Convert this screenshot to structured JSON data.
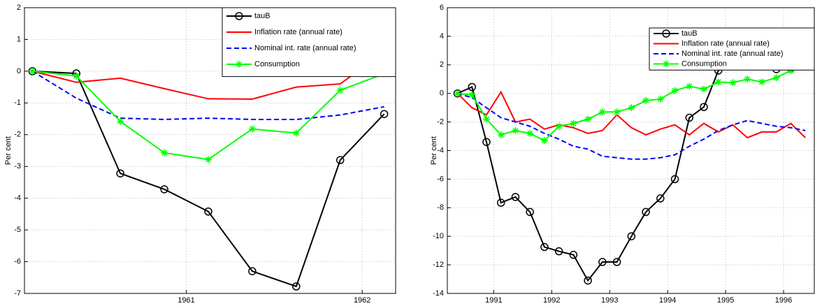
{
  "chart_data": [
    {
      "type": "line",
      "ylabel": "Per cent",
      "legend": "northeast",
      "grid": true,
      "x": [
        1960.125,
        1960.375,
        1960.625,
        1960.875,
        1961.125,
        1961.375,
        1961.625,
        1961.875,
        1962.125
      ],
      "xlim": [
        1960.08,
        1962.19
      ],
      "xticks": [
        1961,
        1962
      ],
      "ylim": [
        -7,
        2
      ],
      "yticks": [
        -7,
        -6,
        -5,
        -4,
        -3,
        -2,
        -1,
        0,
        1,
        2
      ],
      "series": [
        {
          "name": "tauB",
          "color": "#000000",
          "marker": "circle",
          "style": "solid",
          "values": [
            0,
            -0.07,
            -3.22,
            -3.72,
            -4.42,
            -6.3,
            -6.78,
            -2.8,
            -1.35
          ]
        },
        {
          "name": "Inflation rate (annual rate)",
          "color": "#ff0000",
          "style": "solid",
          "values": [
            0,
            -0.35,
            -0.22,
            -0.55,
            -0.87,
            -0.88,
            -0.5,
            -0.4,
            0.6
          ]
        },
        {
          "name": "Nominal int. rate (annual rate)",
          "color": "#0000ff",
          "style": "dashed",
          "values": [
            0,
            -0.85,
            -1.48,
            -1.52,
            -1.48,
            -1.52,
            -1.52,
            -1.38,
            -1.12
          ]
        },
        {
          "name": "Consumption",
          "color": "#00ff00",
          "marker": "star",
          "style": "solid",
          "values": [
            0,
            -0.15,
            -1.58,
            -2.57,
            -2.78,
            -1.82,
            -1.95,
            -0.6,
            -0.08
          ]
        }
      ]
    },
    {
      "type": "line",
      "ylabel": "Per cent",
      "legend": "northeast",
      "grid": true,
      "x": [
        1990.375,
        1990.625,
        1990.875,
        1991.125,
        1991.375,
        1991.625,
        1991.875,
        1992.125,
        1992.375,
        1992.625,
        1992.875,
        1993.125,
        1993.375,
        1993.625,
        1993.875,
        1994.125,
        1994.375,
        1994.625,
        1994.875,
        1995.125,
        1995.375,
        1995.625,
        1995.875,
        1996.125,
        1996.375
      ],
      "xlim": [
        1990.2,
        1996.53
      ],
      "xticks": [
        1991,
        1992,
        1993,
        1994,
        1995,
        1996
      ],
      "ylim": [
        -14,
        6
      ],
      "yticks": [
        -14,
        -12,
        -10,
        -8,
        -6,
        -4,
        -2,
        0,
        2,
        4,
        6
      ],
      "series": [
        {
          "name": "tauB",
          "color": "#000000",
          "marker": "circle",
          "style": "solid",
          "values": [
            0,
            0.45,
            -3.4,
            -7.65,
            -7.25,
            -8.3,
            -10.75,
            -11.05,
            -11.3,
            -13.1,
            -11.8,
            -11.8,
            -10,
            -8.3,
            -7.35,
            -6,
            -1.7,
            -0.95,
            1.6,
            2.05,
            1.9,
            2.05,
            1.7,
            1.75,
            2.9
          ]
        },
        {
          "name": "Inflation rate (annual rate)",
          "color": "#ff0000",
          "style": "solid",
          "values": [
            0,
            -1.0,
            -1.5,
            0.1,
            -2.0,
            -1.8,
            -2.5,
            -2.2,
            -2.4,
            -2.8,
            -2.6,
            -1.5,
            -2.4,
            -2.9,
            -2.5,
            -2.2,
            -2.9,
            -2.1,
            -2.7,
            -2.2,
            -3.1,
            -2.7,
            -2.7,
            -2.1,
            -3.1
          ]
        },
        {
          "name": "Nominal int. rate (annual rate)",
          "color": "#0000ff",
          "style": "dashed",
          "values": [
            0,
            -0.3,
            -1.0,
            -1.7,
            -2.0,
            -2.3,
            -2.8,
            -3.2,
            -3.7,
            -3.9,
            -4.4,
            -4.5,
            -4.6,
            -4.6,
            -4.5,
            -4.3,
            -3.7,
            -3.2,
            -2.6,
            -2.2,
            -1.9,
            -2.1,
            -2.3,
            -2.4,
            -2.6
          ]
        },
        {
          "name": "Consumption",
          "color": "#00ff00",
          "marker": "star",
          "style": "solid",
          "values": [
            0,
            -0.1,
            -1.8,
            -2.9,
            -2.6,
            -2.8,
            -3.3,
            -2.3,
            -2.1,
            -1.8,
            -1.3,
            -1.3,
            -1.0,
            -0.5,
            -0.4,
            0.2,
            0.5,
            0.3,
            0.8,
            0.75,
            1.0,
            0.8,
            1.1,
            1.6,
            2.2
          ]
        }
      ]
    }
  ]
}
